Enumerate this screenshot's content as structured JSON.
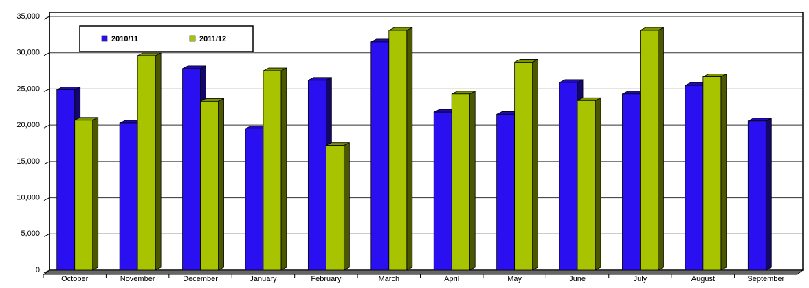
{
  "chart_data": {
    "type": "bar3d",
    "categories": [
      "October",
      "November",
      "December",
      "January",
      "February",
      "March",
      "April",
      "May",
      "June",
      "July",
      "August",
      "September"
    ],
    "series": [
      {
        "name": "2010/11",
        "color": "#2a10f0",
        "values": [
          24900,
          20300,
          27800,
          19500,
          26200,
          31500,
          21800,
          21500,
          25900,
          24300,
          25500,
          20600
        ]
      },
      {
        "name": "2011/12",
        "color": "#a8c400",
        "values": [
          20700,
          29600,
          23300,
          27500,
          17200,
          33100,
          24300,
          28700,
          23400,
          33100,
          26700,
          null
        ]
      }
    ],
    "ylim": [
      0,
      35000
    ],
    "yticks": [
      0,
      {
        "value": 5000,
        "label": "5,000"
      },
      {
        "value": 10000,
        "label": "10,000"
      },
      {
        "value": 15000,
        "label": "15,000"
      },
      {
        "value": 20000,
        "label": "20,000"
      },
      {
        "value": 25000,
        "label": "25,000"
      },
      {
        "value": 30000,
        "label": "30,000"
      },
      {
        "value": 35000,
        "label": "35,000"
      }
    ],
    "grid": true,
    "legend": "top-left"
  }
}
